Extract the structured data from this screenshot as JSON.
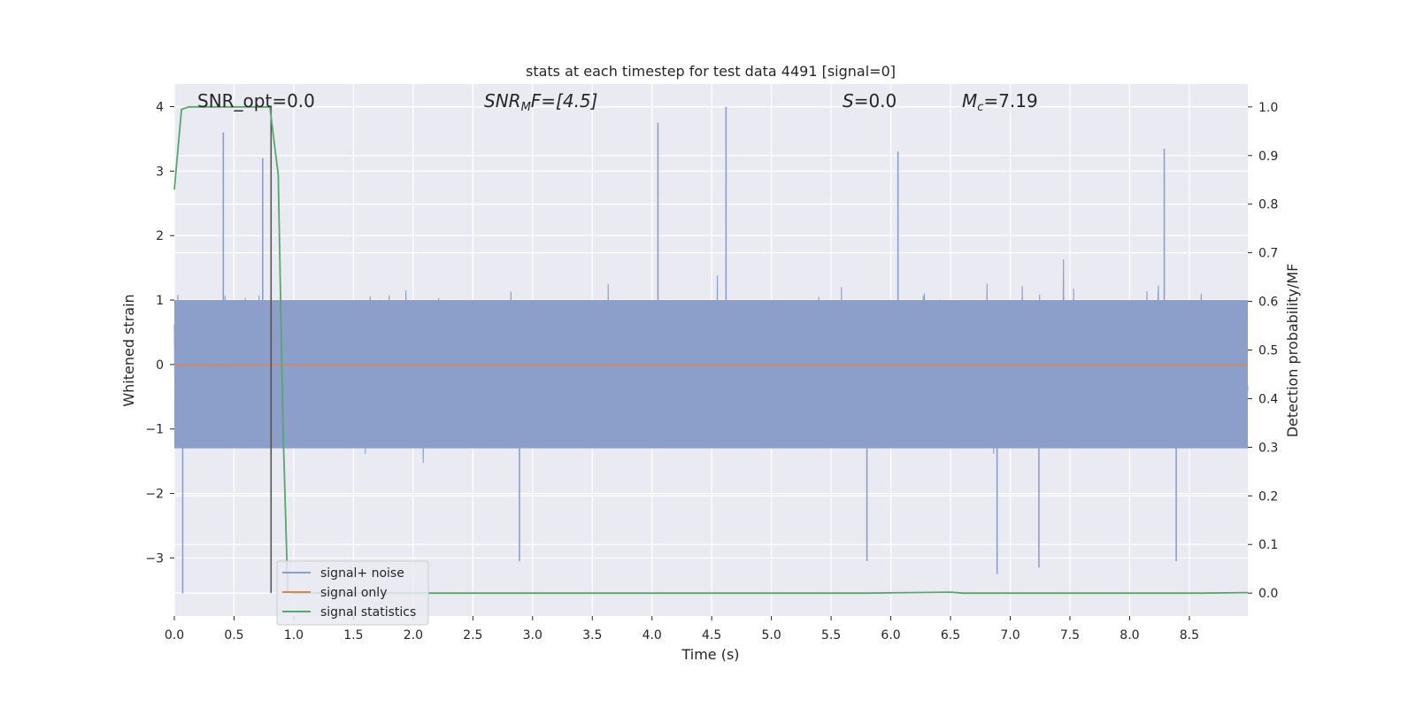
{
  "chart_data": {
    "type": "line",
    "title": "stats at each timestep for test data 4491 [signal=0]",
    "xlabel": "Time (s)",
    "ylabel_left": "Whitened strain",
    "ylabel_right": "Detection probability/MF",
    "xlim": [
      0.0,
      8.99
    ],
    "ylim_left": [
      -3.9,
      4.35
    ],
    "ylim_right": [
      -0.047,
      1.047
    ],
    "x_ticks": [
      "0.0",
      "0.5",
      "1.0",
      "1.5",
      "2.0",
      "2.5",
      "3.0",
      "3.5",
      "4.0",
      "4.5",
      "5.0",
      "5.5",
      "6.0",
      "6.5",
      "7.0",
      "7.5",
      "8.0",
      "8.5"
    ],
    "y_ticks_left": [
      "−3",
      "−2",
      "−1",
      "0",
      "1",
      "2",
      "3",
      "4"
    ],
    "y_ticks_right": [
      "0.0",
      "0.1",
      "0.2",
      "0.3",
      "0.4",
      "0.5",
      "0.6",
      "0.7",
      "0.8",
      "0.9",
      "1.0"
    ],
    "grid": true,
    "legend_position": "lower-left",
    "annotations": {
      "snr_opt": "SNR_opt=0.0",
      "snr_mf_base": "SNR",
      "snr_mf_sub": "M",
      "snr_mf_rest": "F=[4.5]",
      "s_italic": "S",
      "s_rest": "=0.0",
      "mc_base": "M",
      "mc_sub": "c",
      "mc_rest": "=7.19"
    },
    "vertical_marker_x": 0.81,
    "series": [
      {
        "name": "signal+ noise",
        "color": "#8c9fca",
        "axis": "left",
        "description": "whitened noise, roughly uniform band between -1.3 and 1.0 with spikes",
        "band_min": -1.3,
        "band_max": 1.0,
        "peaks": [
          {
            "x": 0.07,
            "y": -3.55
          },
          {
            "x": 0.41,
            "y": 3.6
          },
          {
            "x": 0.74,
            "y": 3.2
          },
          {
            "x": 2.89,
            "y": -3.05
          },
          {
            "x": 4.05,
            "y": 3.75
          },
          {
            "x": 4.62,
            "y": 4.0
          },
          {
            "x": 5.8,
            "y": -3.05
          },
          {
            "x": 6.06,
            "y": 3.3
          },
          {
            "x": 6.89,
            "y": -3.25
          },
          {
            "x": 7.24,
            "y": -3.15
          },
          {
            "x": 8.29,
            "y": 3.35
          },
          {
            "x": 8.39,
            "y": -3.05
          }
        ]
      },
      {
        "name": "signal only",
        "color": "#dd8452",
        "axis": "left",
        "x": [
          0.0,
          8.99
        ],
        "y": [
          0.0,
          0.0
        ]
      },
      {
        "name": "signal statistics",
        "color": "#55a868",
        "axis": "right",
        "x": [
          0.0,
          0.06,
          0.12,
          0.2,
          0.8,
          0.87,
          0.91,
          0.95,
          1.0,
          5.8,
          6.5,
          6.6,
          8.6,
          8.99
        ],
        "y": [
          0.83,
          0.995,
          1.0,
          1.0,
          1.0,
          0.86,
          0.34,
          0.002,
          0.0,
          0.0,
          0.002,
          0.0,
          0.0,
          0.001
        ]
      }
    ]
  }
}
